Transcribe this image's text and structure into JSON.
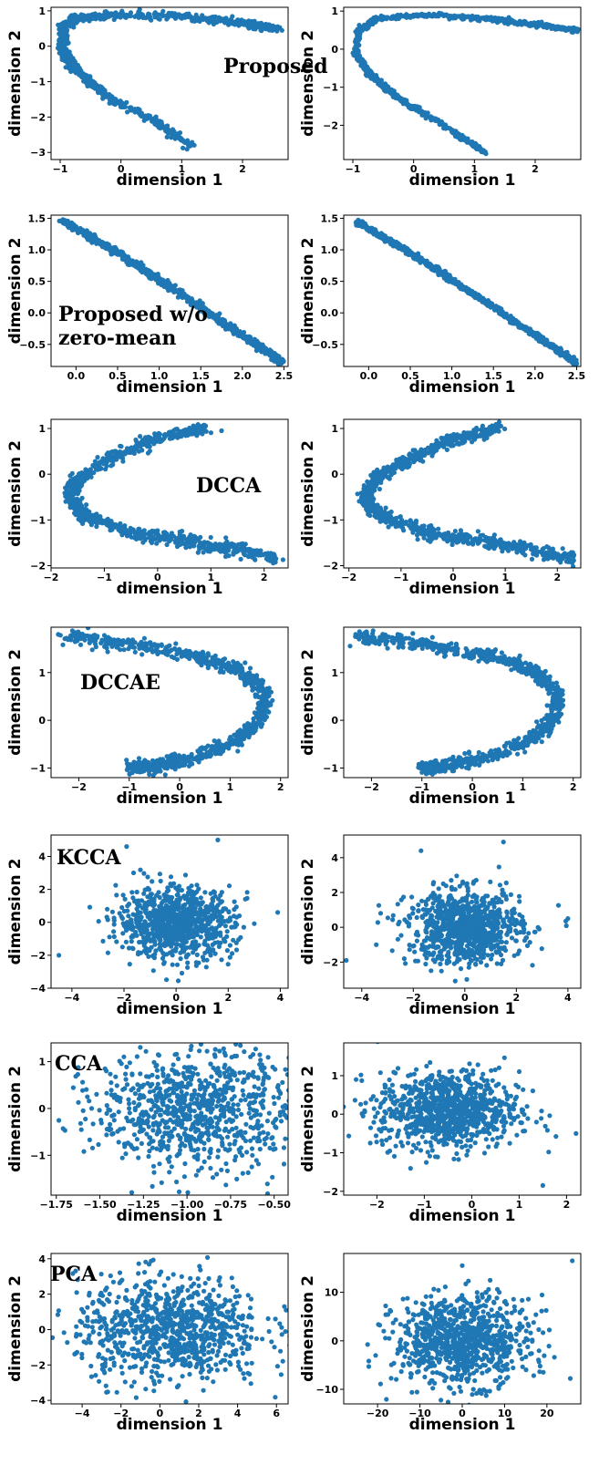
{
  "point_color": "#1f77b4",
  "xlabel": "dimension 1",
  "ylabel": "dimension 2",
  "chart_data": [
    {
      "type": "scatter",
      "method": "Proposed",
      "view": "left",
      "xlim": [
        -1.15,
        2.75
      ],
      "ylim": [
        -3.2,
        1.1
      ],
      "xticks": [
        -1,
        0,
        1,
        2
      ],
      "xtick_labels": [
        "−1",
        "0",
        "1",
        "2"
      ],
      "yticks": [
        -3,
        -2,
        -1,
        0,
        1
      ],
      "ytick_labels": [
        "−3",
        "−2",
        "−1",
        "0",
        "1"
      ],
      "shape": "curve",
      "path": [
        [
          1.15,
          -2.8
        ],
        [
          0.5,
          -2.05
        ],
        [
          -0.2,
          -1.45
        ],
        [
          -0.7,
          -0.75
        ],
        [
          -0.95,
          -0.15
        ],
        [
          -0.95,
          0.5
        ],
        [
          -0.75,
          0.8
        ],
        [
          0.0,
          0.9
        ],
        [
          1.0,
          0.85
        ],
        [
          2.0,
          0.65
        ],
        [
          2.6,
          0.5
        ]
      ],
      "jitter": [
        0.04,
        0.05
      ],
      "count": 900,
      "outliers": []
    },
    {
      "type": "scatter",
      "method": "Proposed",
      "view": "right",
      "xlim": [
        -1.15,
        2.75
      ],
      "ylim": [
        -2.9,
        1.1
      ],
      "xticks": [
        -1,
        0,
        1,
        2
      ],
      "xtick_labels": [
        "−1",
        "0",
        "1",
        "2"
      ],
      "yticks": [
        -2,
        -1,
        0,
        1
      ],
      "ytick_labels": [
        "−2",
        "−1",
        "0",
        "1"
      ],
      "shape": "curve",
      "path": [
        [
          1.2,
          -2.75
        ],
        [
          0.5,
          -2.0
        ],
        [
          -0.2,
          -1.35
        ],
        [
          -0.7,
          -0.7
        ],
        [
          -0.95,
          -0.1
        ],
        [
          -0.9,
          0.5
        ],
        [
          -0.6,
          0.8
        ],
        [
          0.2,
          0.9
        ],
        [
          1.2,
          0.8
        ],
        [
          2.0,
          0.65
        ],
        [
          2.7,
          0.5
        ]
      ],
      "jitter": [
        0.02,
        0.03
      ],
      "count": 900,
      "outliers": []
    },
    {
      "type": "scatter",
      "method": "Proposed w/o\nzero-mean",
      "view": "left",
      "xlim": [
        -0.3,
        2.55
      ],
      "ylim": [
        -0.85,
        1.55
      ],
      "xticks": [
        0,
        0.5,
        1,
        1.5,
        2,
        2.5
      ],
      "xtick_labels": [
        "0.0",
        "0.5",
        "1.0",
        "1.5",
        "2.0",
        "2.5"
      ],
      "yticks": [
        -0.5,
        0,
        0.5,
        1,
        1.5
      ],
      "ytick_labels": [
        "−0.5",
        "0.0",
        "0.5",
        "1.0",
        "1.5"
      ],
      "shape": "curve",
      "path": [
        [
          -0.15,
          1.45
        ],
        [
          0.5,
          0.95
        ],
        [
          1.2,
          0.35
        ],
        [
          2.0,
          -0.35
        ],
        [
          2.5,
          -0.8
        ]
      ],
      "jitter": [
        0.02,
        0.025
      ],
      "count": 900,
      "outliers": []
    },
    {
      "type": "scatter",
      "method": "",
      "view": "right",
      "xlim": [
        -0.3,
        2.55
      ],
      "ylim": [
        -0.85,
        1.55
      ],
      "xticks": [
        0,
        0.5,
        1,
        1.5,
        2,
        2.5
      ],
      "xtick_labels": [
        "0.0",
        "0.5",
        "1.0",
        "1.5",
        "2.0",
        "2.5"
      ],
      "yticks": [
        -0.5,
        0,
        0.5,
        1,
        1.5
      ],
      "ytick_labels": [
        "−0.5",
        "0.0",
        "0.5",
        "1.0",
        "1.5"
      ],
      "shape": "curve",
      "path": [
        [
          -0.15,
          1.45
        ],
        [
          0.5,
          0.95
        ],
        [
          1.2,
          0.35
        ],
        [
          2.0,
          -0.35
        ],
        [
          2.5,
          -0.8
        ]
      ],
      "jitter": [
        0.015,
        0.02
      ],
      "count": 900,
      "outliers": []
    },
    {
      "type": "scatter",
      "method": "DCCA",
      "view": "left",
      "xlim": [
        -2.0,
        2.45
      ],
      "ylim": [
        -2.05,
        1.2
      ],
      "xticks": [
        -2,
        -1,
        0,
        1,
        2
      ],
      "xtick_labels": [
        "−2",
        "−1",
        "0",
        "1",
        "2"
      ],
      "yticks": [
        -2,
        -1,
        0,
        1
      ],
      "ytick_labels": [
        "−2",
        "−1",
        "0",
        "1"
      ],
      "shape": "curve",
      "path": [
        [
          0.9,
          1.0
        ],
        [
          0.0,
          0.8
        ],
        [
          -0.8,
          0.4
        ],
        [
          -1.5,
          -0.1
        ],
        [
          -1.65,
          -0.5
        ],
        [
          -1.4,
          -0.9
        ],
        [
          -0.5,
          -1.3
        ],
        [
          0.5,
          -1.45
        ],
        [
          1.5,
          -1.65
        ],
        [
          2.3,
          -1.85
        ]
      ],
      "jitter": [
        0.06,
        0.07
      ],
      "count": 900,
      "outliers": [
        [
          1.2,
          0.95
        ]
      ]
    },
    {
      "type": "scatter",
      "method": "",
      "view": "right",
      "xlim": [
        -2.1,
        2.45
      ],
      "ylim": [
        -2.05,
        1.2
      ],
      "xticks": [
        -2,
        -1,
        0,
        1,
        2
      ],
      "xtick_labels": [
        "−2",
        "−1",
        "0",
        "1",
        "2"
      ],
      "yticks": [
        -2,
        -1,
        0,
        1
      ],
      "ytick_labels": [
        "−2",
        "−1",
        "0",
        "1"
      ],
      "shape": "curve",
      "path": [
        [
          0.9,
          1.0
        ],
        [
          0.0,
          0.75
        ],
        [
          -0.8,
          0.35
        ],
        [
          -1.5,
          -0.1
        ],
        [
          -1.7,
          -0.5
        ],
        [
          -1.4,
          -0.9
        ],
        [
          -0.5,
          -1.3
        ],
        [
          0.5,
          -1.45
        ],
        [
          1.5,
          -1.65
        ],
        [
          2.3,
          -1.85
        ]
      ],
      "jitter": [
        0.06,
        0.07
      ],
      "count": 900,
      "outliers": [
        [
          2.1,
          -1.85
        ]
      ]
    },
    {
      "type": "scatter",
      "method": "DCCAE",
      "view": "left",
      "xlim": [
        -2.55,
        2.15
      ],
      "ylim": [
        -1.2,
        1.95
      ],
      "xticks": [
        -2,
        -1,
        0,
        1,
        2
      ],
      "xtick_labels": [
        "−2",
        "−1",
        "0",
        "1",
        "2"
      ],
      "yticks": [
        -1,
        0,
        1
      ],
      "ytick_labels": [
        "−1",
        "0",
        "1"
      ],
      "shape": "curve",
      "path": [
        [
          -2.3,
          1.75
        ],
        [
          -1.0,
          1.6
        ],
        [
          0.3,
          1.35
        ],
        [
          1.2,
          1.05
        ],
        [
          1.7,
          0.55
        ],
        [
          1.6,
          0.0
        ],
        [
          1.1,
          -0.45
        ],
        [
          0.2,
          -0.8
        ],
        [
          -0.5,
          -0.95
        ],
        [
          -1.0,
          -1.0
        ]
      ],
      "jitter": [
        0.06,
        0.07
      ],
      "count": 900,
      "outliers": []
    },
    {
      "type": "scatter",
      "method": "",
      "view": "right",
      "xlim": [
        -2.55,
        2.15
      ],
      "ylim": [
        -1.2,
        1.95
      ],
      "xticks": [
        -2,
        -1,
        0,
        1,
        2
      ],
      "xtick_labels": [
        "−2",
        "−1",
        "0",
        "1",
        "2"
      ],
      "yticks": [
        -1,
        0,
        1
      ],
      "ytick_labels": [
        "−1",
        "0",
        "1"
      ],
      "shape": "curve",
      "path": [
        [
          -2.3,
          1.75
        ],
        [
          -1.0,
          1.6
        ],
        [
          0.3,
          1.35
        ],
        [
          1.2,
          1.05
        ],
        [
          1.7,
          0.55
        ],
        [
          1.6,
          0.0
        ],
        [
          1.1,
          -0.45
        ],
        [
          0.2,
          -0.8
        ],
        [
          -0.5,
          -0.95
        ],
        [
          -1.0,
          -1.0
        ]
      ],
      "jitter": [
        0.06,
        0.07
      ],
      "count": 900,
      "outliers": []
    },
    {
      "type": "scatter",
      "method": "KCCA",
      "view": "left",
      "xlim": [
        -4.8,
        4.3
      ],
      "ylim": [
        -4.0,
        5.3
      ],
      "xticks": [
        -4,
        -2,
        0,
        2,
        4
      ],
      "xtick_labels": [
        "−4",
        "−2",
        "0",
        "2",
        "4"
      ],
      "yticks": [
        -4,
        -2,
        0,
        2,
        4
      ],
      "ytick_labels": [
        "−4",
        "−2",
        "0",
        "2",
        "4"
      ],
      "shape": "blob",
      "center": [
        0.0,
        0.0
      ],
      "spread": [
        1.1,
        1.05
      ],
      "count": 900,
      "outliers": [
        [
          1.6,
          5.0
        ],
        [
          -4.5,
          -2.0
        ],
        [
          -1.9,
          4.6
        ],
        [
          3.9,
          0.6
        ]
      ]
    },
    {
      "type": "scatter",
      "method": "",
      "view": "right",
      "xlim": [
        -4.7,
        4.5
      ],
      "ylim": [
        -3.5,
        5.3
      ],
      "xticks": [
        -4,
        -2,
        0,
        2,
        4
      ],
      "xtick_labels": [
        "−4",
        "−2",
        "0",
        "2",
        "4"
      ],
      "yticks": [
        -2,
        0,
        2,
        4
      ],
      "ytick_labels": [
        "−2",
        "0",
        "2",
        "4"
      ],
      "shape": "blob",
      "center": [
        0.0,
        0.0
      ],
      "spread": [
        1.1,
        1.05
      ],
      "count": 900,
      "outliers": [
        [
          1.5,
          4.9
        ],
        [
          -4.6,
          -1.9
        ],
        [
          -1.7,
          4.4
        ],
        [
          4.0,
          0.5
        ]
      ]
    },
    {
      "type": "scatter",
      "method": "CCA",
      "view": "left",
      "xlim": [
        -1.78,
        -0.42
      ],
      "ylim": [
        -1.85,
        1.4
      ],
      "xticks": [
        -1.75,
        -1.5,
        -1.25,
        -1.0,
        -0.75,
        -0.5
      ],
      "xtick_labels": [
        "−1.75",
        "−1.50",
        "−1.25",
        "−1.00",
        "−0.75",
        "−0.50"
      ],
      "yticks": [
        -1,
        0,
        1
      ],
      "ytick_labels": [
        "−1",
        "0",
        "1"
      ],
      "shape": "blob",
      "center": [
        -0.95,
        0.0
      ],
      "spread": [
        0.28,
        0.65
      ],
      "count": 900,
      "outliers": []
    },
    {
      "type": "scatter",
      "method": "",
      "view": "right",
      "xlim": [
        -2.7,
        2.3
      ],
      "ylim": [
        -2.1,
        1.85
      ],
      "xticks": [
        -2,
        -1,
        0,
        1,
        2
      ],
      "xtick_labels": [
        "−2",
        "−1",
        "0",
        "1",
        "2"
      ],
      "yticks": [
        -2,
        -1,
        0,
        1
      ],
      "ytick_labels": [
        "−2",
        "−1",
        "0",
        "1"
      ],
      "shape": "blob",
      "center": [
        -0.5,
        0.1
      ],
      "spread": [
        0.75,
        0.5
      ],
      "count": 900,
      "outliers": [
        [
          2.2,
          -0.5
        ],
        [
          1.5,
          -1.85
        ]
      ]
    },
    {
      "type": "scatter",
      "method": "PCA",
      "view": "left",
      "xlim": [
        -5.6,
        6.6
      ],
      "ylim": [
        -4.2,
        4.3
      ],
      "xticks": [
        -4,
        -2,
        0,
        2,
        4,
        6
      ],
      "xtick_labels": [
        "−4",
        "−2",
        "0",
        "2",
        "4",
        "6"
      ],
      "yticks": [
        -4,
        -2,
        0,
        2,
        4
      ],
      "ytick_labels": [
        "−4",
        "−2",
        "0",
        "2",
        "4"
      ],
      "shape": "blob",
      "center": [
        0.5,
        0.0
      ],
      "spread": [
        2.4,
        1.5
      ],
      "count": 900,
      "outliers": []
    },
    {
      "type": "scatter",
      "method": "",
      "view": "right",
      "xlim": [
        -28,
        28
      ],
      "ylim": [
        -13,
        18
      ],
      "xticks": [
        -20,
        -10,
        0,
        10,
        20
      ],
      "xtick_labels": [
        "−20",
        "−10",
        "0",
        "10",
        "20"
      ],
      "yticks": [
        -10,
        0,
        10
      ],
      "ytick_labels": [
        "−10",
        "0",
        "10"
      ],
      "shape": "blob",
      "center": [
        0.0,
        0.0
      ],
      "spread": [
        8,
        4.5
      ],
      "count": 900,
      "outliers": [
        [
          26,
          16.5
        ],
        [
          0,
          15.5
        ]
      ]
    }
  ]
}
